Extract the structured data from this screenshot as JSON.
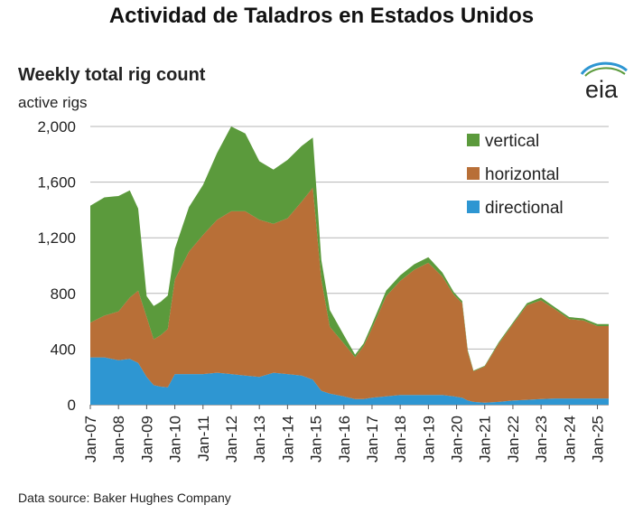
{
  "header": {
    "title": "Actividad de Taladros en Estados Unidos",
    "logo_text": "eia"
  },
  "footer": {
    "source": "Data source: Baker Hughes Company"
  },
  "colors": {
    "vertical": "#5b9a3c",
    "horizontal": "#b86f37",
    "directional": "#2e96d2",
    "grid": "#b5b5b5"
  },
  "chart_data": {
    "type": "area",
    "title": "Weekly total rig count",
    "xlabel": "",
    "ylabel": "active rigs",
    "ylim": [
      0,
      2000
    ],
    "yticks": [
      0,
      400,
      800,
      1200,
      1600,
      2000
    ],
    "ytick_labels": [
      "0",
      "400",
      "800",
      "1,200",
      "1,600",
      "2,000"
    ],
    "xlim": [
      2007.0,
      2025.4
    ],
    "xticks": [
      2007,
      2008,
      2009,
      2010,
      2011,
      2012,
      2013,
      2014,
      2015,
      2016,
      2017,
      2018,
      2019,
      2020,
      2021,
      2022,
      2023,
      2024,
      2025
    ],
    "xtick_labels": [
      "Jan-07",
      "Jan-08",
      "Jan-09",
      "Jan-10",
      "Jan-11",
      "Jan-12",
      "Jan-13",
      "Jan-14",
      "Jan-15",
      "Jan-16",
      "Jan-17",
      "Jan-18",
      "Jan-19",
      "Jan-20",
      "Jan-21",
      "Jan-22",
      "Jan-23",
      "Jan-24",
      "Jan-25"
    ],
    "stacked": true,
    "grid": true,
    "legend_position": "top-right",
    "x": [
      2007.0,
      2007.5,
      2008.0,
      2008.4,
      2008.7,
      2009.0,
      2009.25,
      2009.5,
      2009.75,
      2010.0,
      2010.5,
      2011.0,
      2011.5,
      2012.0,
      2012.5,
      2013.0,
      2013.5,
      2014.0,
      2014.5,
      2014.9,
      2015.2,
      2015.5,
      2016.0,
      2016.4,
      2016.7,
      2017.0,
      2017.5,
      2018.0,
      2018.5,
      2019.0,
      2019.5,
      2019.9,
      2020.2,
      2020.4,
      2020.6,
      2021.0,
      2021.5,
      2022.0,
      2022.5,
      2023.0,
      2023.5,
      2024.0,
      2024.5,
      2025.0,
      2025.4
    ],
    "series": [
      {
        "name": "directional",
        "values": [
          340,
          340,
          320,
          330,
          300,
          200,
          140,
          130,
          125,
          220,
          220,
          220,
          230,
          220,
          210,
          200,
          230,
          220,
          210,
          180,
          100,
          80,
          60,
          40,
          40,
          50,
          60,
          70,
          70,
          70,
          70,
          60,
          50,
          30,
          20,
          15,
          20,
          30,
          35,
          40,
          45,
          45,
          45,
          45,
          45
        ]
      },
      {
        "name": "horizontal",
        "values": [
          250,
          300,
          350,
          440,
          520,
          430,
          330,
          370,
          420,
          680,
          880,
          1000,
          1100,
          1170,
          1180,
          1130,
          1070,
          1120,
          1250,
          1380,
          800,
          480,
          380,
          300,
          380,
          500,
          720,
          820,
          900,
          950,
          850,
          730,
          680,
          350,
          220,
          260,
          420,
          550,
          680,
          710,
          640,
          570,
          560,
          520,
          520
        ]
      },
      {
        "name": "vertical",
        "values": [
          840,
          850,
          830,
          770,
          590,
          150,
          240,
          240,
          240,
          220,
          320,
          360,
          480,
          610,
          560,
          420,
          390,
          420,
          400,
          360,
          140,
          120,
          60,
          20,
          20,
          30,
          40,
          40,
          40,
          40,
          30,
          20,
          15,
          10,
          5,
          5,
          10,
          10,
          15,
          20,
          15,
          15,
          15,
          15,
          15
        ]
      }
    ]
  }
}
